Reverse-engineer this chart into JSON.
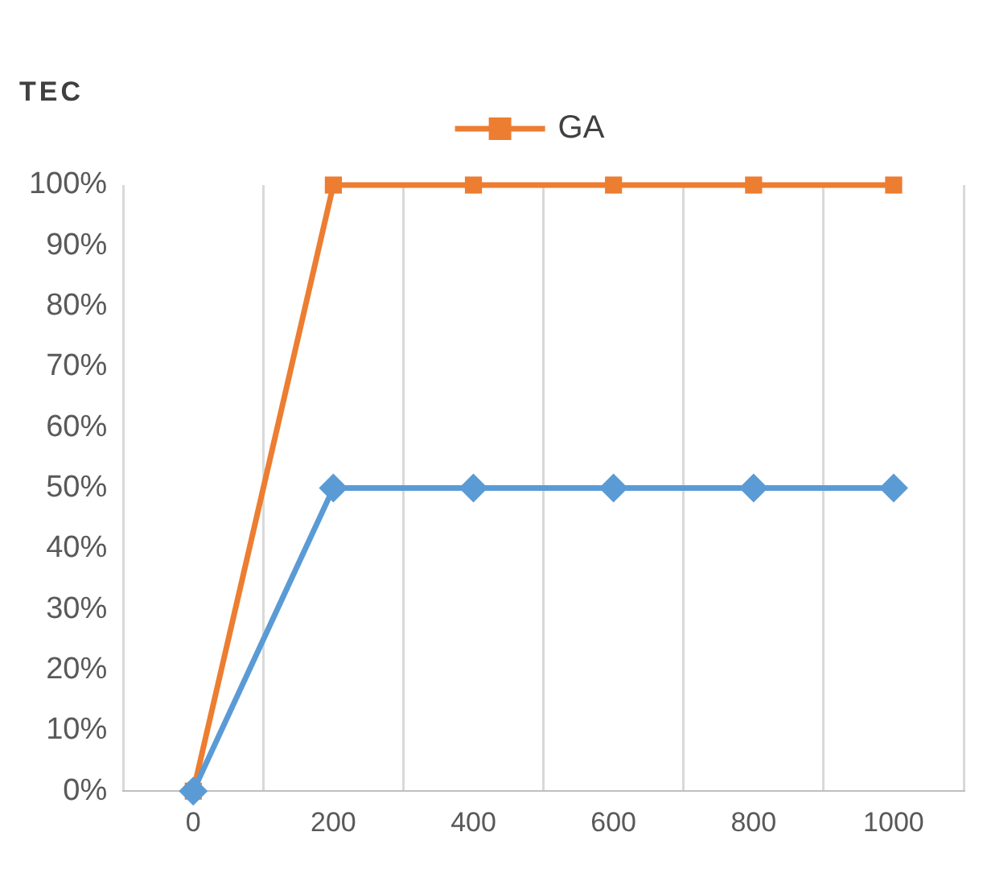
{
  "chart_data": {
    "type": "line",
    "ylabel": "TEC",
    "categories": [
      "0",
      "200",
      "400",
      "600",
      "800",
      "1000"
    ],
    "series": [
      {
        "color": "#5b9bd5",
        "marker": "diamond",
        "values": [
          0,
          50,
          50,
          50,
          50,
          50
        ]
      },
      {
        "name": "GA",
        "color": "#ed7d31",
        "marker": "square",
        "values": [
          0,
          100,
          100,
          100,
          100,
          100
        ]
      }
    ],
    "ylim": [
      0,
      100
    ],
    "yticks": [
      {
        "value": 0,
        "label": "0%"
      },
      {
        "value": 10,
        "label": "10%"
      },
      {
        "value": 20,
        "label": "20%"
      },
      {
        "value": 30,
        "label": "30%"
      },
      {
        "value": 40,
        "label": "40%"
      },
      {
        "value": 50,
        "label": "50%"
      },
      {
        "value": 60,
        "label": "60%"
      },
      {
        "value": 70,
        "label": "70%"
      },
      {
        "value": 80,
        "label": "80%"
      },
      {
        "value": 90,
        "label": "90%"
      },
      {
        "value": 100,
        "label": "100%"
      }
    ],
    "grid": "x",
    "legend": "top",
    "line_style": "solid"
  }
}
